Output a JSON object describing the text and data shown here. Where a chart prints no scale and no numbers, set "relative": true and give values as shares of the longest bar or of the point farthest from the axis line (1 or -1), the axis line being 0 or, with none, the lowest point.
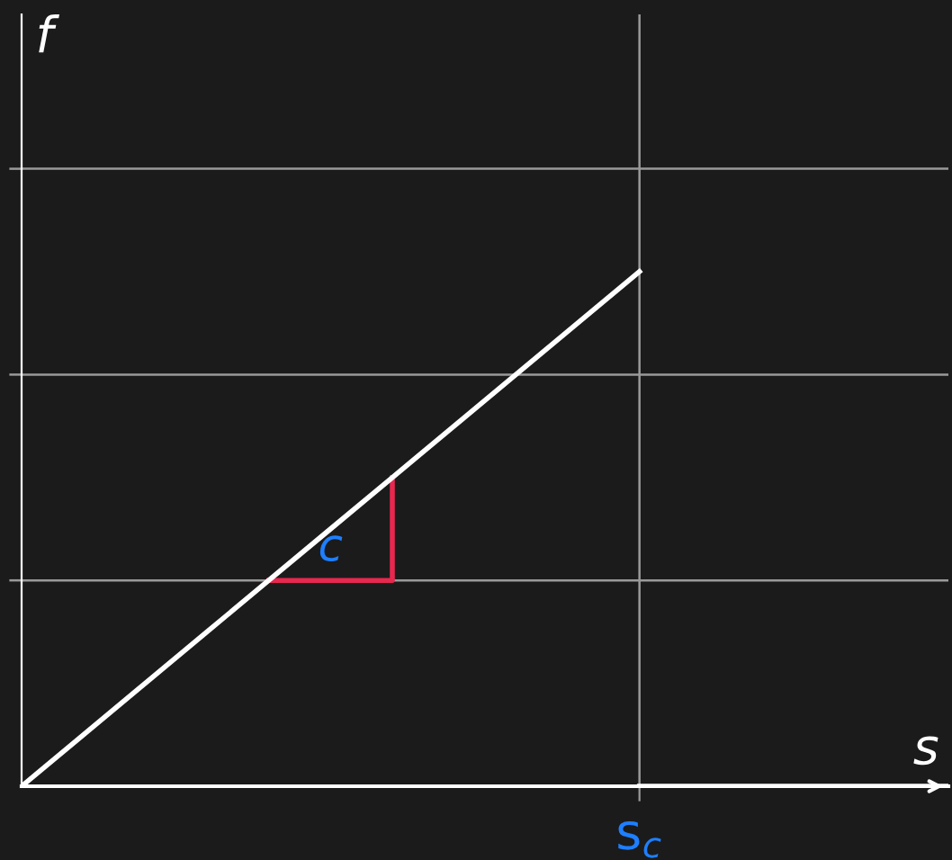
{
  "chart_data": {
    "type": "line",
    "relative": true,
    "xlabel": "s",
    "ylabel": "f",
    "categories": [
      null,
      null,
      null,
      null,
      null,
      null,
      null,
      null,
      null,
      null,
      null,
      null,
      null,
      null,
      null,
      null
    ],
    "series": [
      {
        "color": "#ffffff",
        "values": [
          0,
          0.1,
          0.2,
          0.3,
          0.4,
          0.5,
          0.6,
          0.7,
          0.8,
          0.9,
          1,
          null,
          null,
          null,
          null,
          null
        ]
      },
      {
        "color": "#ffffff",
        "values": [
          null,
          null,
          null,
          null,
          null,
          null,
          null,
          null,
          null,
          null,
          0,
          0,
          0,
          0,
          0,
          0
        ]
      }
    ],
    "annotations": [
      "c",
      "s$_{c}$"
    ],
    "marker": "none",
    "line_style": "solid"
  }
}
